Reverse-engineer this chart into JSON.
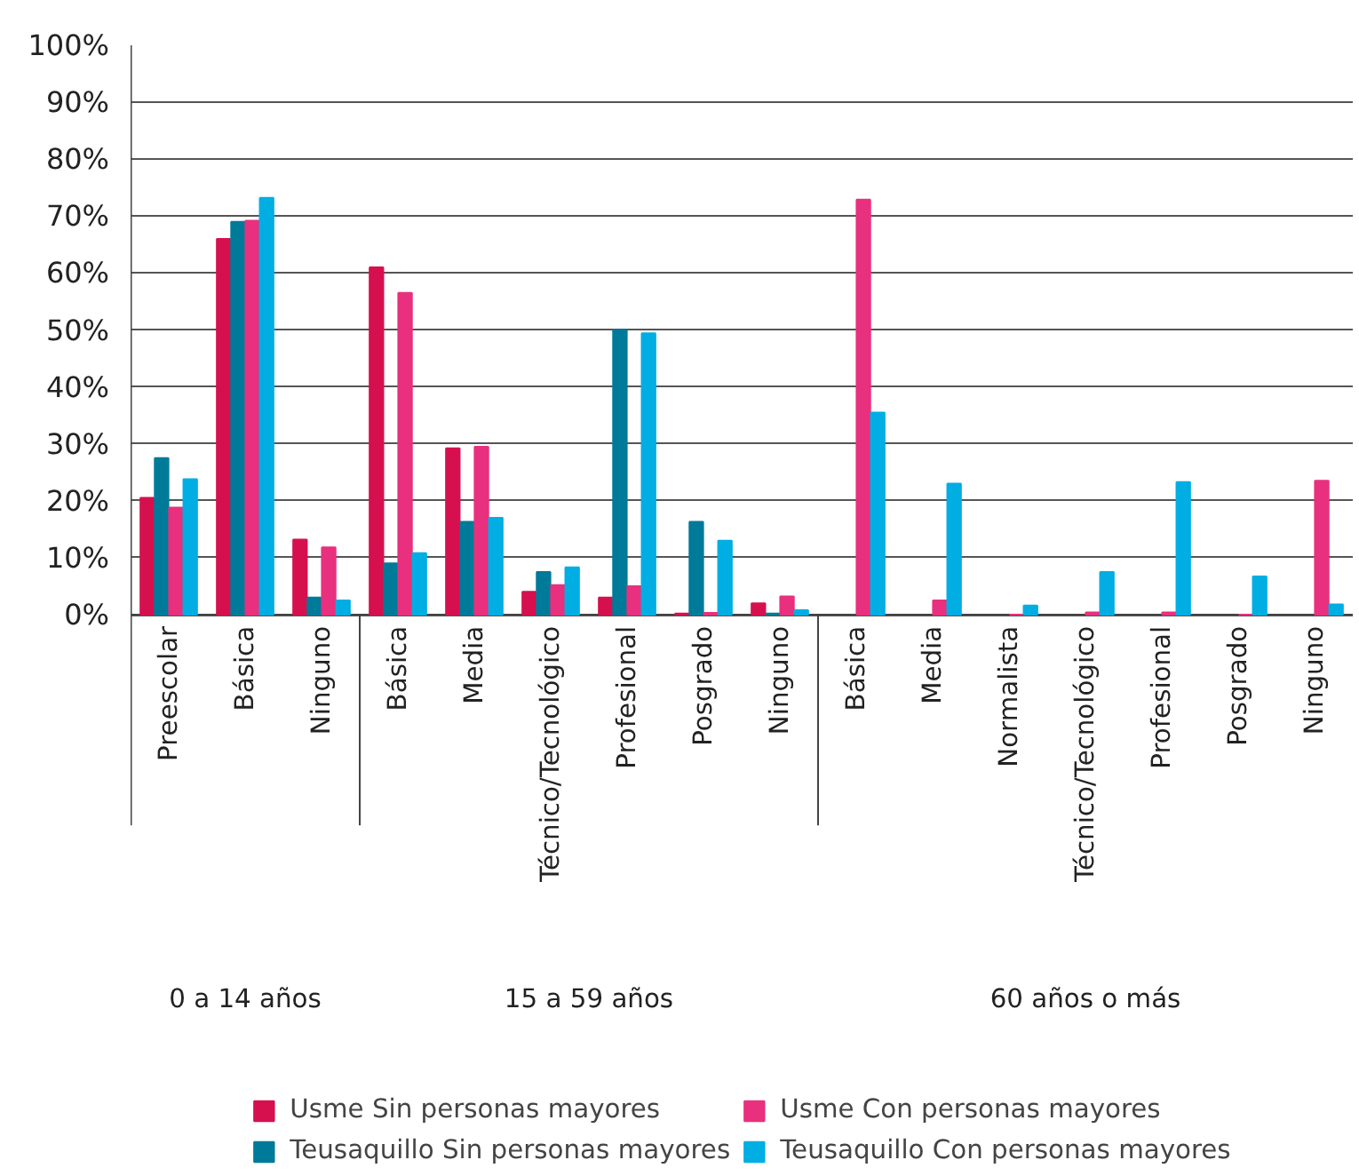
{
  "chart_data": {
    "type": "bar",
    "categories": [
      "Preescolar",
      "Básica",
      "Ninguno",
      "Básica",
      "Media",
      "Técnico/Tecnológico",
      "Profesional",
      "Posgrado",
      "Ninguno",
      "Básica",
      "Media",
      "Normalista",
      "Técnico/Tecnológico",
      "Profesional",
      "Posgrado",
      "Ninguno"
    ],
    "annotations": [
      "0 a 14 años",
      "15 a 59 años",
      "60 años o más"
    ],
    "series": [
      {
        "name": "Usme Sin personas mayores",
        "color": "#d6104f",
        "values": [
          20.5,
          66,
          13.2,
          61,
          29.2,
          4,
          3,
          0.2,
          2,
          null,
          null,
          null,
          null,
          null,
          null,
          null
        ]
      },
      {
        "name": "Teusaquillo Sin personas mayores",
        "color": "#007a99",
        "values": [
          27.5,
          69,
          3,
          9,
          16.3,
          7.5,
          50,
          16.3,
          0.2,
          null,
          null,
          null,
          null,
          null,
          null,
          null
        ]
      },
      {
        "name": "Usme Con personas mayores",
        "color": "#e8307e",
        "values": [
          18.8,
          69.2,
          11.8,
          56.5,
          29.5,
          5.2,
          5,
          0.3,
          3.2,
          72.9,
          2.5,
          0,
          0.4,
          0.4,
          0,
          23.5
        ]
      },
      {
        "name": "Teusaquillo Con personas mayores",
        "color": "#00aee3",
        "values": [
          23.8,
          73.2,
          2.5,
          10.8,
          17,
          8.3,
          49.4,
          13,
          0.8,
          35.5,
          23,
          1.6,
          7.5,
          23.3,
          6.7,
          1.8
        ]
      }
    ],
    "ylim": [
      0,
      100
    ],
    "yticks": [
      {
        "value": 0,
        "label": "0%"
      },
      {
        "value": 10,
        "label": "10%"
      },
      {
        "value": 20,
        "label": "20%"
      },
      {
        "value": 30,
        "label": "30%"
      },
      {
        "value": 40,
        "label": "40%"
      },
      {
        "value": 50,
        "label": "50%"
      },
      {
        "value": 60,
        "label": "60%"
      },
      {
        "value": 70,
        "label": "70%"
      },
      {
        "value": 80,
        "label": "80%"
      },
      {
        "value": 90,
        "label": "90%"
      },
      {
        "value": 100,
        "label": "100%"
      }
    ],
    "grid": "y",
    "legend": "bottom"
  }
}
